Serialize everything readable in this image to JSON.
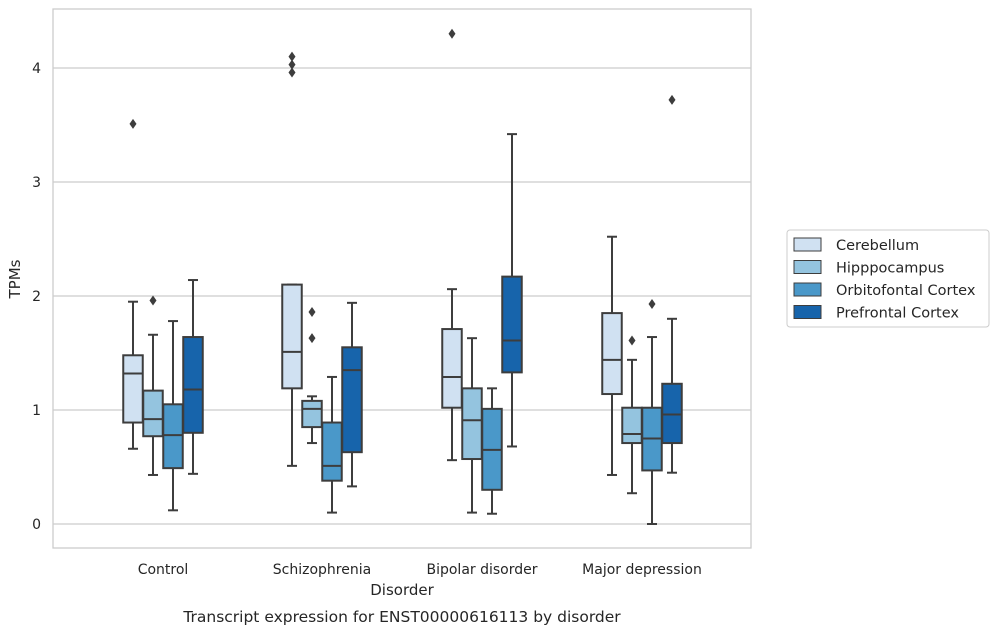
{
  "chart_data": {
    "type": "box",
    "caption": "Transcript expression for ENST00000616113 by disorder",
    "xlabel": "Disorder",
    "ylabel": "TPMs",
    "ylim": [
      -0.2,
      4.55
    ],
    "yticks": [
      "0",
      "1",
      "2",
      "3",
      "4"
    ],
    "grid": "horizontal",
    "legend_position": "right",
    "categories": [
      "Control",
      "Schizophrenia",
      "Bipolar disorder",
      "Major depression"
    ],
    "series": [
      {
        "name": "Cerebellum",
        "color": "#d0e1f2",
        "boxes": [
          {
            "whisker_low": 0.66,
            "q1": 0.89,
            "median": 1.32,
            "q3": 1.48,
            "whisker_high": 1.95,
            "outliers": [
              3.51
            ]
          },
          {
            "whisker_low": 0.51,
            "q1": 1.19,
            "median": 1.51,
            "q3": 2.1,
            "whisker_high": 2.1,
            "outliers": [
              3.96,
              4.03,
              4.1
            ]
          },
          {
            "whisker_low": 0.56,
            "q1": 1.02,
            "median": 1.29,
            "q3": 1.71,
            "whisker_high": 2.06,
            "outliers": [
              4.3
            ]
          },
          {
            "whisker_low": 0.43,
            "q1": 1.14,
            "median": 1.44,
            "q3": 1.85,
            "whisker_high": 2.52,
            "outliers": []
          }
        ]
      },
      {
        "name": "Hipppocampus",
        "color": "#94c4df",
        "boxes": [
          {
            "whisker_low": 0.43,
            "q1": 0.77,
            "median": 0.92,
            "q3": 1.17,
            "whisker_high": 1.66,
            "outliers": [
              1.96
            ]
          },
          {
            "whisker_low": 0.71,
            "q1": 0.85,
            "median": 1.01,
            "q3": 1.08,
            "whisker_high": 1.12,
            "outliers": [
              1.63,
              1.86
            ]
          },
          {
            "whisker_low": 0.1,
            "q1": 0.57,
            "median": 0.91,
            "q3": 1.19,
            "whisker_high": 1.63,
            "outliers": []
          },
          {
            "whisker_low": 0.27,
            "q1": 0.71,
            "median": 0.79,
            "q3": 1.02,
            "whisker_high": 1.44,
            "outliers": [
              1.61
            ]
          }
        ]
      },
      {
        "name": "Orbitofontal Cortex",
        "color": "#4a98c9",
        "boxes": [
          {
            "whisker_low": 0.12,
            "q1": 0.49,
            "median": 0.78,
            "q3": 1.05,
            "whisker_high": 1.78,
            "outliers": []
          },
          {
            "whisker_low": 0.1,
            "q1": 0.38,
            "median": 0.51,
            "q3": 0.89,
            "whisker_high": 1.29,
            "outliers": []
          },
          {
            "whisker_low": 0.09,
            "q1": 0.3,
            "median": 0.65,
            "q3": 1.01,
            "whisker_high": 1.19,
            "outliers": []
          },
          {
            "whisker_low": 0.0,
            "q1": 0.47,
            "median": 0.75,
            "q3": 1.02,
            "whisker_high": 1.64,
            "outliers": [
              1.93
            ]
          }
        ]
      },
      {
        "name": "Prefrontal Cortex",
        "color": "#1764ab",
        "boxes": [
          {
            "whisker_low": 0.44,
            "q1": 0.8,
            "median": 1.18,
            "q3": 1.64,
            "whisker_high": 2.14,
            "outliers": []
          },
          {
            "whisker_low": 0.33,
            "q1": 0.63,
            "median": 1.35,
            "q3": 1.55,
            "whisker_high": 1.94,
            "outliers": []
          },
          {
            "whisker_low": 0.68,
            "q1": 1.33,
            "median": 1.61,
            "q3": 2.17,
            "whisker_high": 3.42,
            "outliers": []
          },
          {
            "whisker_low": 0.45,
            "q1": 0.71,
            "median": 0.96,
            "q3": 1.23,
            "whisker_high": 1.8,
            "outliers": [
              3.72
            ]
          }
        ]
      }
    ]
  }
}
